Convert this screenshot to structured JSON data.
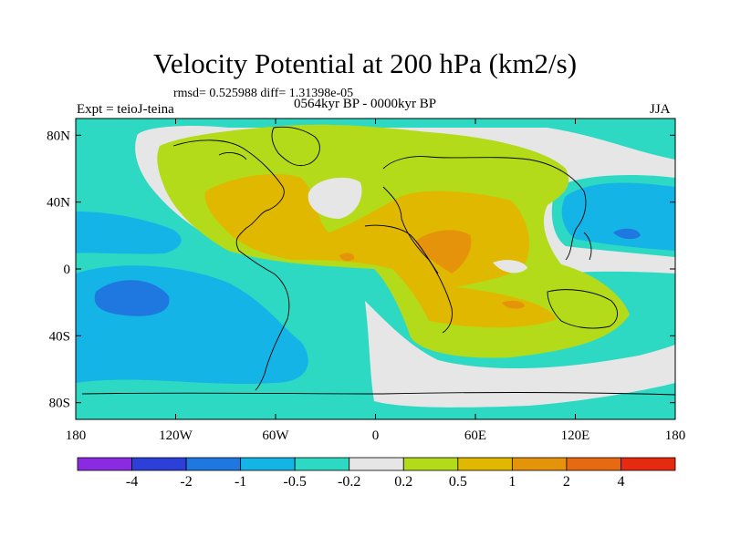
{
  "title": "Velocity Potential at 200 hPa (km2/s)",
  "stats": "rmsd= 0.525988 diff= 1.31398e-05",
  "left_label": "Expt = teioJ-teina",
  "center_label": "0564kyr BP - 0000kyr BP",
  "right_label": "JJA",
  "lat_ticks": [
    {
      "label": "80N",
      "lat": 80
    },
    {
      "label": "40N",
      "lat": 40
    },
    {
      "label": "0",
      "lat": 0
    },
    {
      "label": "40S",
      "lat": -40
    },
    {
      "label": "80S",
      "lat": -80
    }
  ],
  "lon_ticks": [
    {
      "label": "180",
      "lon": -180
    },
    {
      "label": "120W",
      "lon": -120
    },
    {
      "label": "60W",
      "lon": -60
    },
    {
      "label": "0",
      "lon": 0
    },
    {
      "label": "60E",
      "lon": 60
    },
    {
      "label": "120E",
      "lon": 120
    },
    {
      "label": "180",
      "lon": 180
    }
  ],
  "colorbar": {
    "colors": [
      "#8a2be2",
      "#2c3fd8",
      "#1e78e0",
      "#14b4e6",
      "#2ed9c4",
      "#e6e6e6",
      "#b3db1a",
      "#e0b800",
      "#e6930c",
      "#e86a10",
      "#e62a10"
    ],
    "labels": [
      "-4",
      "-2",
      "-1",
      "-0.5",
      "-0.2",
      "0.2",
      "0.5",
      "1",
      "2",
      "4"
    ]
  },
  "levels": {
    "neg_2": "#1e78e0",
    "neg_1": "#14b4e6",
    "neg_05": "#2ed9c4",
    "neutral": "#e6e6e6",
    "pos_02": "#b3db1a",
    "pos_05": "#e0b800",
    "pos_1": "#e6930c"
  }
}
